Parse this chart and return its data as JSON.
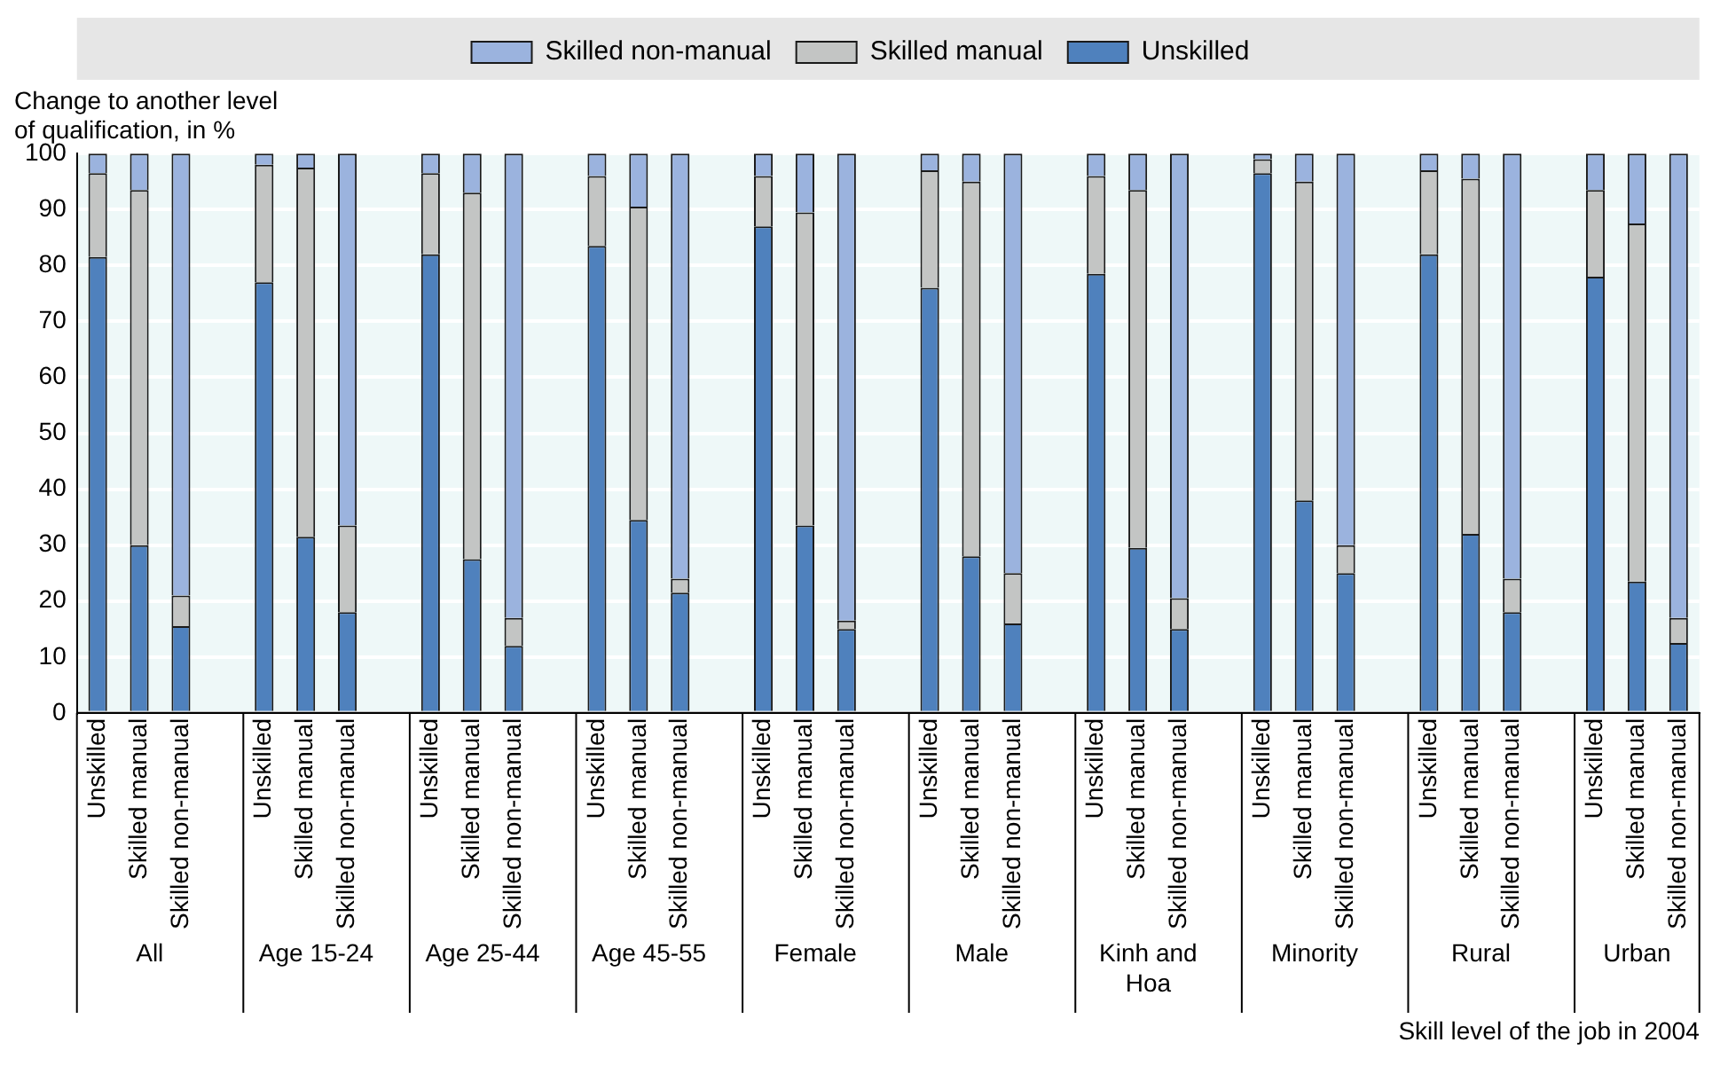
{
  "chart_data": {
    "type": "bar",
    "stacked": true,
    "ylabel": "Change to another level of qualification, in %",
    "xlabel": "Skill level of the job in 2004",
    "categories": [
      "Unskilled",
      "Skilled manual",
      "Skilled non-manual",
      null,
      "Unskilled",
      "Skilled manual",
      "Skilled non-manual",
      null,
      "Unskilled",
      "Skilled manual",
      "Skilled non-manual",
      null,
      "Unskilled",
      "Skilled manual",
      "Skilled non-manual",
      null,
      "Unskilled",
      "Skilled manual",
      "Skilled non-manual",
      null,
      "Unskilled",
      "Skilled manual",
      "Skilled non-manual",
      null,
      "Unskilled",
      "Skilled manual",
      "Skilled non-manual",
      null,
      "Unskilled",
      "Skilled manual",
      "Skilled non-manual",
      null,
      "Unskilled",
      "Skilled manual",
      "Skilled non-manual",
      null,
      "Unskilled",
      "Skilled manual",
      "Skilled non-manual"
    ],
    "series": [
      {
        "name": "Unskilled",
        "color": "#4f81bd",
        "values": [
          81.5,
          30,
          15.5,
          null,
          77,
          31.5,
          18,
          null,
          82,
          27.5,
          12,
          null,
          83.5,
          34.5,
          21.5,
          null,
          87,
          33.5,
          15,
          null,
          76,
          28,
          16,
          null,
          78.5,
          29.5,
          15,
          null,
          96.5,
          38,
          25,
          null,
          82,
          32,
          18,
          null,
          78,
          23.5,
          12.5
        ]
      },
      {
        "name": "Skilled manual",
        "color": "#c3c5c4",
        "values": [
          15,
          63.5,
          5.5,
          null,
          21,
          66,
          15.5,
          null,
          14.5,
          65.5,
          5,
          null,
          12.5,
          56,
          2.5,
          null,
          9,
          56,
          1.5,
          null,
          21,
          67,
          9,
          null,
          17.5,
          64,
          5.5,
          null,
          2.5,
          57,
          5,
          null,
          15,
          63.5,
          6,
          null,
          15.5,
          64,
          4.5
        ]
      },
      {
        "name": "Skilled non-manual",
        "color": "#9bb3de",
        "values": [
          3.5,
          6.5,
          79,
          null,
          2,
          2.5,
          66.5,
          null,
          3.5,
          7,
          83,
          null,
          4,
          9.5,
          76,
          null,
          4,
          10.5,
          83.5,
          null,
          3,
          5,
          75,
          null,
          4,
          6.5,
          79.5,
          null,
          1,
          5,
          70,
          null,
          3,
          4.5,
          76,
          null,
          6.5,
          12.5,
          83
        ]
      }
    ],
    "annotations": [
      "All",
      "Age 15-24",
      "Age 25-44",
      "Age 45-55",
      "Female",
      "Male",
      "Kinh and Hoa",
      "Minority",
      "Rural",
      "Urban"
    ],
    "ylim": [
      0,
      100
    ],
    "yticks": [
      0,
      10,
      20,
      30,
      40,
      50,
      60,
      70,
      80,
      90,
      100
    ],
    "grid": "y",
    "legend": "top"
  }
}
